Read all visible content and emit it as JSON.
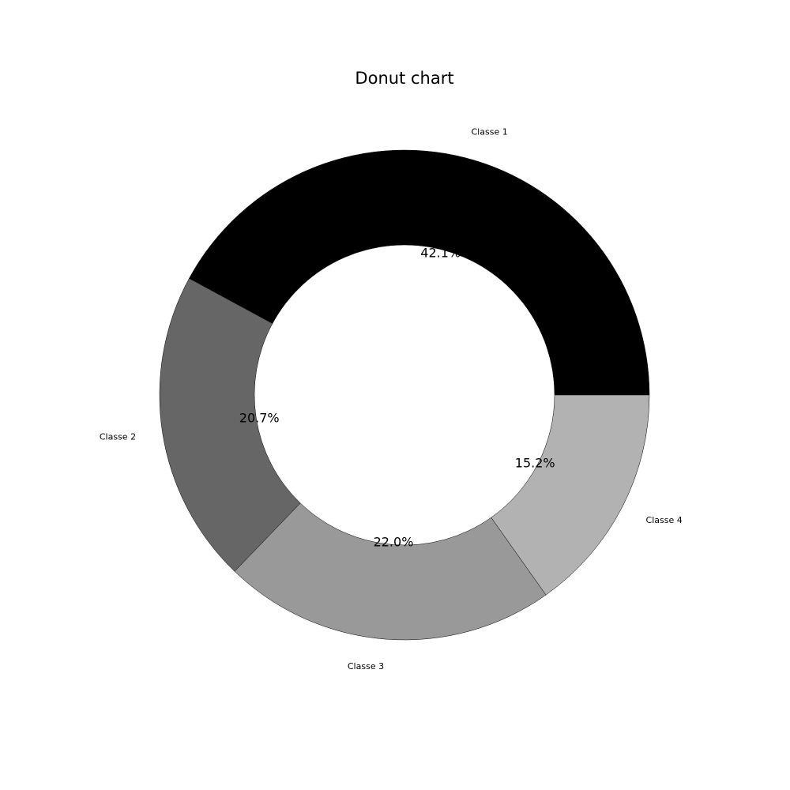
{
  "chart_data": {
    "type": "pie",
    "variant": "donut",
    "title": "Donut chart",
    "categories": [
      "Classe 1",
      "Classe 2",
      "Classe 3",
      "Classe 4"
    ],
    "values": [
      42.1,
      20.7,
      22.0,
      15.2
    ],
    "value_labels": [
      "42.1%",
      "20.7%",
      "22.0%",
      "15.2%"
    ],
    "colors": [
      "#000000",
      "#666666",
      "#999999",
      "#b2b2b2"
    ],
    "start_angle_deg": 0,
    "direction": "counterclockwise",
    "legend": "none"
  }
}
